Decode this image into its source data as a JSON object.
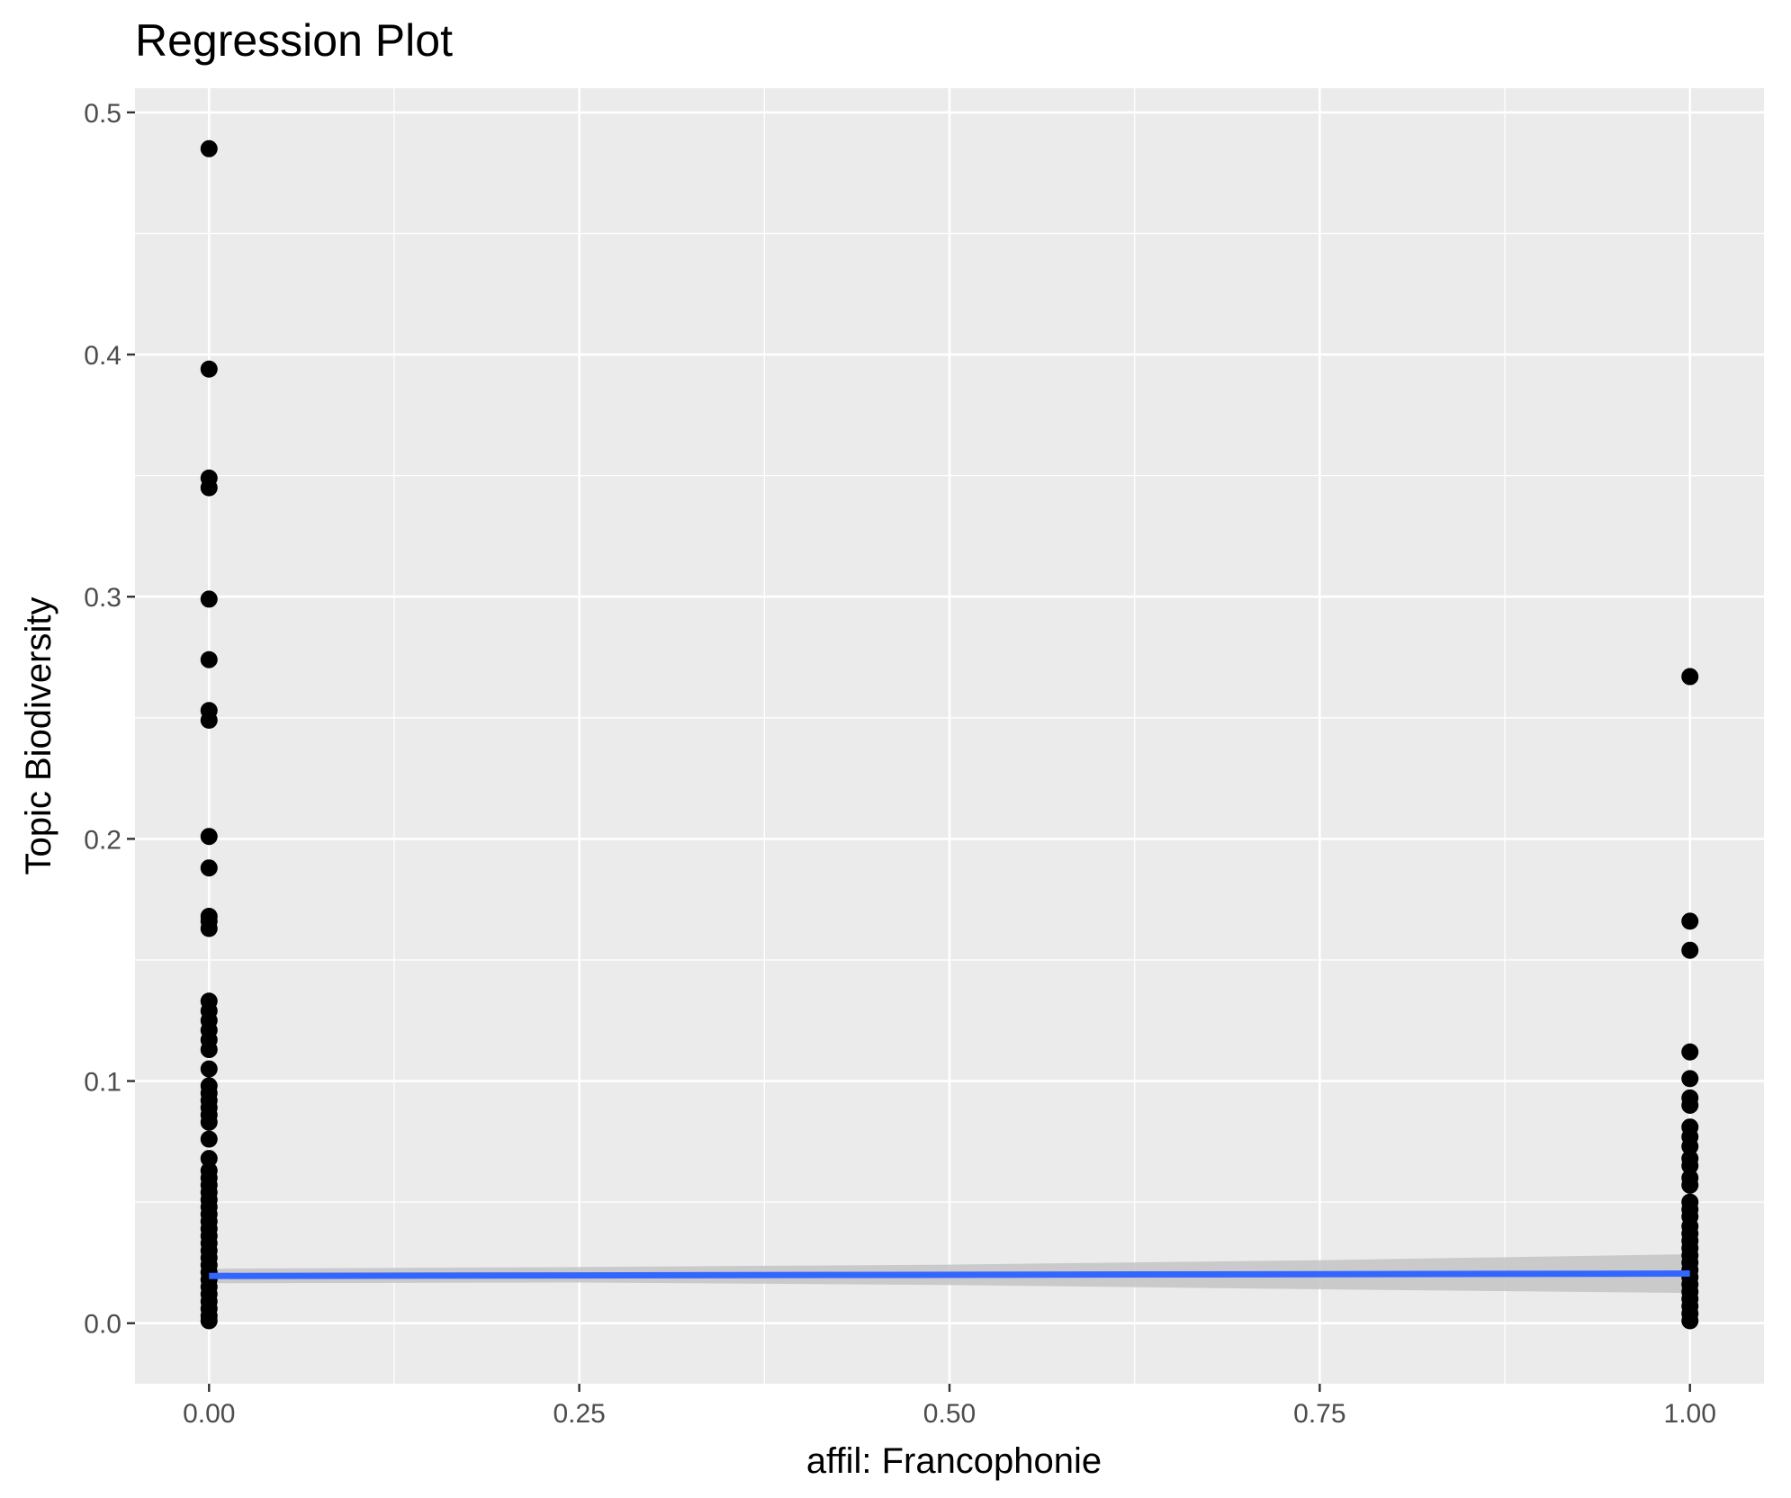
{
  "chart_data": {
    "type": "scatter",
    "title": "Regression Plot",
    "xlabel": "affil: Francophonie",
    "ylabel": "Topic Biodiversity",
    "xlim": [
      -0.05,
      1.05
    ],
    "ylim": [
      -0.025,
      0.51
    ],
    "x_ticks": [
      0.0,
      0.25,
      0.5,
      0.75,
      1.0
    ],
    "x_tick_labels": [
      "0.00",
      "0.25",
      "0.50",
      "0.75",
      "1.00"
    ],
    "y_ticks": [
      0.0,
      0.1,
      0.2,
      0.3,
      0.4,
      0.5
    ],
    "y_tick_labels": [
      "0.0",
      "0.1",
      "0.2",
      "0.3",
      "0.4",
      "0.5"
    ],
    "grid": true,
    "legend": "none",
    "colors": {
      "panel": "#ebebeb",
      "grid": "#ffffff",
      "points": "#000000",
      "fit_line": "#3366ff",
      "ci_band": "#c4c4c4"
    },
    "points": [
      {
        "x": 0,
        "y": 0.485
      },
      {
        "x": 0,
        "y": 0.394
      },
      {
        "x": 0,
        "y": 0.349
      },
      {
        "x": 0,
        "y": 0.345
      },
      {
        "x": 0,
        "y": 0.299
      },
      {
        "x": 0,
        "y": 0.274
      },
      {
        "x": 0,
        "y": 0.253
      },
      {
        "x": 0,
        "y": 0.249
      },
      {
        "x": 0,
        "y": 0.201
      },
      {
        "x": 0,
        "y": 0.188
      },
      {
        "x": 0,
        "y": 0.168
      },
      {
        "x": 0,
        "y": 0.166
      },
      {
        "x": 0,
        "y": 0.163
      },
      {
        "x": 0,
        "y": 0.133
      },
      {
        "x": 0,
        "y": 0.129
      },
      {
        "x": 0,
        "y": 0.125
      },
      {
        "x": 0,
        "y": 0.121
      },
      {
        "x": 0,
        "y": 0.117
      },
      {
        "x": 0,
        "y": 0.113
      },
      {
        "x": 0,
        "y": 0.105
      },
      {
        "x": 0,
        "y": 0.098
      },
      {
        "x": 0,
        "y": 0.095
      },
      {
        "x": 0,
        "y": 0.092
      },
      {
        "x": 0,
        "y": 0.089
      },
      {
        "x": 0,
        "y": 0.086
      },
      {
        "x": 0,
        "y": 0.083
      },
      {
        "x": 0,
        "y": 0.076
      },
      {
        "x": 0,
        "y": 0.068
      },
      {
        "x": 0,
        "y": 0.063
      },
      {
        "x": 0,
        "y": 0.06
      },
      {
        "x": 0,
        "y": 0.057
      },
      {
        "x": 0,
        "y": 0.054
      },
      {
        "x": 0,
        "y": 0.051
      },
      {
        "x": 0,
        "y": 0.048
      },
      {
        "x": 0,
        "y": 0.045
      },
      {
        "x": 0,
        "y": 0.042
      },
      {
        "x": 0,
        "y": 0.039
      },
      {
        "x": 0,
        "y": 0.036
      },
      {
        "x": 0,
        "y": 0.033
      },
      {
        "x": 0,
        "y": 0.03
      },
      {
        "x": 0,
        "y": 0.027
      },
      {
        "x": 0,
        "y": 0.024
      },
      {
        "x": 0,
        "y": 0.021
      },
      {
        "x": 0,
        "y": 0.018
      },
      {
        "x": 0,
        "y": 0.015
      },
      {
        "x": 0,
        "y": 0.012
      },
      {
        "x": 0,
        "y": 0.009
      },
      {
        "x": 0,
        "y": 0.006
      },
      {
        "x": 0,
        "y": 0.003
      },
      {
        "x": 0,
        "y": 0.001
      },
      {
        "x": 1,
        "y": 0.267
      },
      {
        "x": 1,
        "y": 0.166
      },
      {
        "x": 1,
        "y": 0.154
      },
      {
        "x": 1,
        "y": 0.112
      },
      {
        "x": 1,
        "y": 0.101
      },
      {
        "x": 1,
        "y": 0.093
      },
      {
        "x": 1,
        "y": 0.09
      },
      {
        "x": 1,
        "y": 0.081
      },
      {
        "x": 1,
        "y": 0.077
      },
      {
        "x": 1,
        "y": 0.073
      },
      {
        "x": 1,
        "y": 0.068
      },
      {
        "x": 1,
        "y": 0.065
      },
      {
        "x": 1,
        "y": 0.06
      },
      {
        "x": 1,
        "y": 0.057
      },
      {
        "x": 1,
        "y": 0.05
      },
      {
        "x": 1,
        "y": 0.047
      },
      {
        "x": 1,
        "y": 0.044
      },
      {
        "x": 1,
        "y": 0.04
      },
      {
        "x": 1,
        "y": 0.037
      },
      {
        "x": 1,
        "y": 0.034
      },
      {
        "x": 1,
        "y": 0.031
      },
      {
        "x": 1,
        "y": 0.028
      },
      {
        "x": 1,
        "y": 0.025
      },
      {
        "x": 1,
        "y": 0.022
      },
      {
        "x": 1,
        "y": 0.019
      },
      {
        "x": 1,
        "y": 0.016
      },
      {
        "x": 1,
        "y": 0.013
      },
      {
        "x": 1,
        "y": 0.01
      },
      {
        "x": 1,
        "y": 0.007
      },
      {
        "x": 1,
        "y": 0.004
      },
      {
        "x": 1,
        "y": 0.001
      }
    ],
    "fit_line": [
      {
        "x": 0,
        "y": 0.0195
      },
      {
        "x": 1,
        "y": 0.0205
      }
    ],
    "ci_band": [
      {
        "x": 0.0,
        "lower": 0.0165,
        "upper": 0.0225
      },
      {
        "x": 0.25,
        "lower": 0.0168,
        "upper": 0.0232
      },
      {
        "x": 0.5,
        "lower": 0.0158,
        "upper": 0.0242
      },
      {
        "x": 0.75,
        "lower": 0.014,
        "upper": 0.026
      },
      {
        "x": 1.0,
        "lower": 0.0125,
        "upper": 0.0285
      }
    ]
  }
}
